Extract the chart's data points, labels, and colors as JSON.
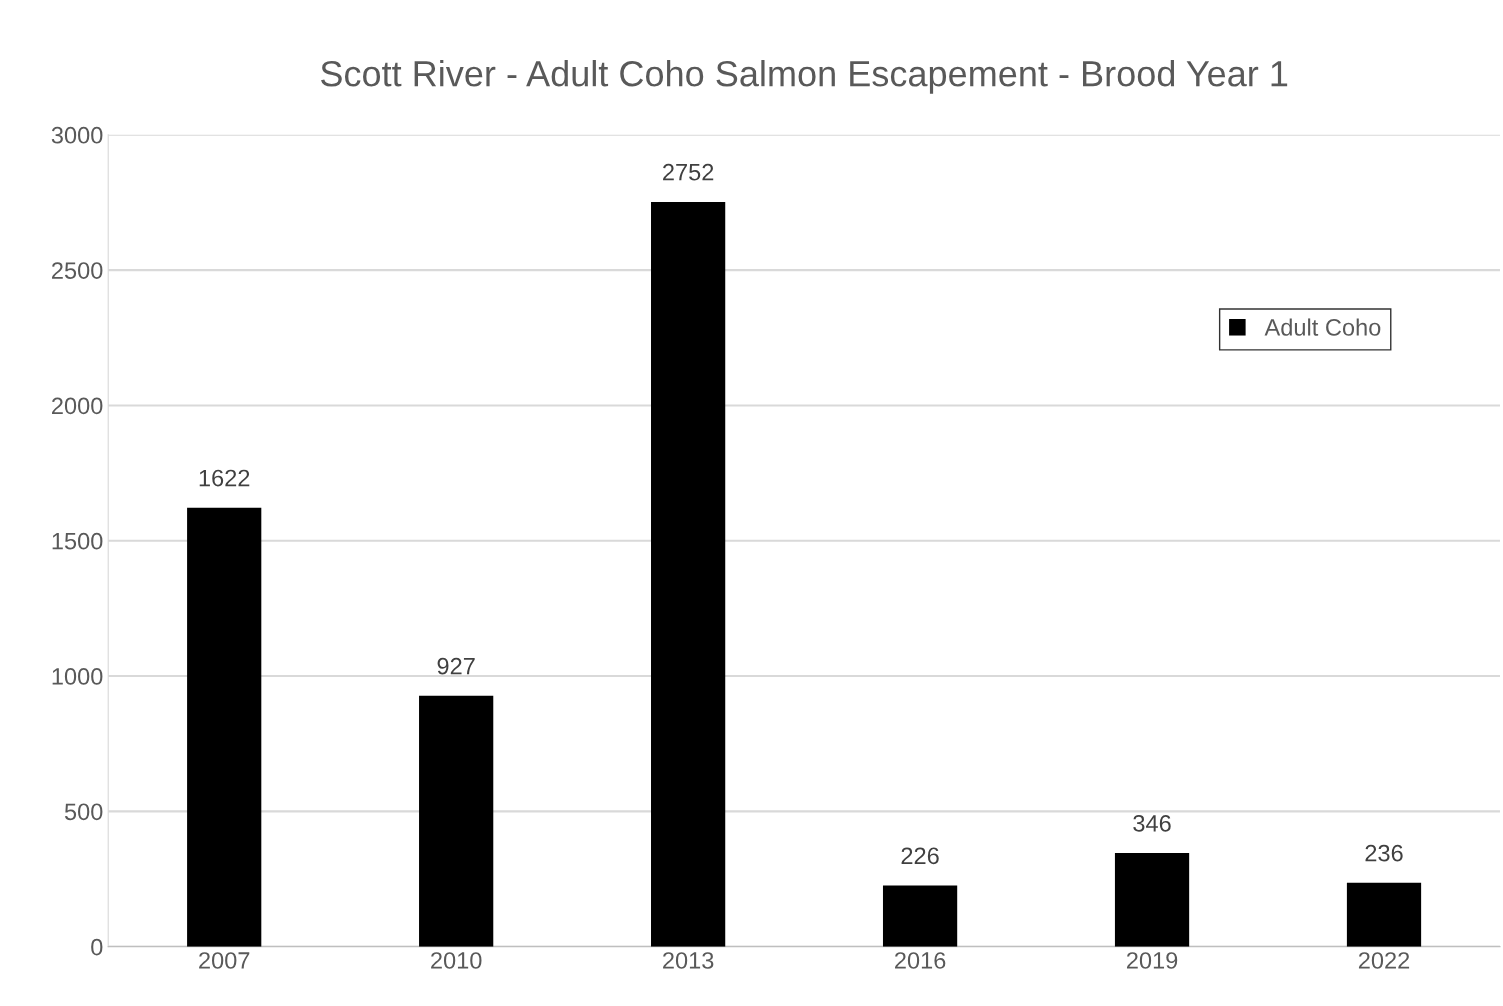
{
  "chart_data": {
    "type": "bar",
    "title": "Scott River - Adult Coho Salmon Escapement - Brood Year 1",
    "categories": [
      "2007",
      "2010",
      "2013",
      "2016",
      "2019",
      "2022"
    ],
    "series": [
      {
        "name": "Adult Coho",
        "color": "#000000",
        "values": [
          1622,
          927,
          2752,
          226,
          346,
          236
        ]
      }
    ],
    "ylim": [
      0,
      3000
    ],
    "yticks": [
      0,
      500,
      1000,
      1500,
      2000,
      2500,
      3000
    ],
    "grid": "y",
    "legend": "top right",
    "data_labels": true
  }
}
